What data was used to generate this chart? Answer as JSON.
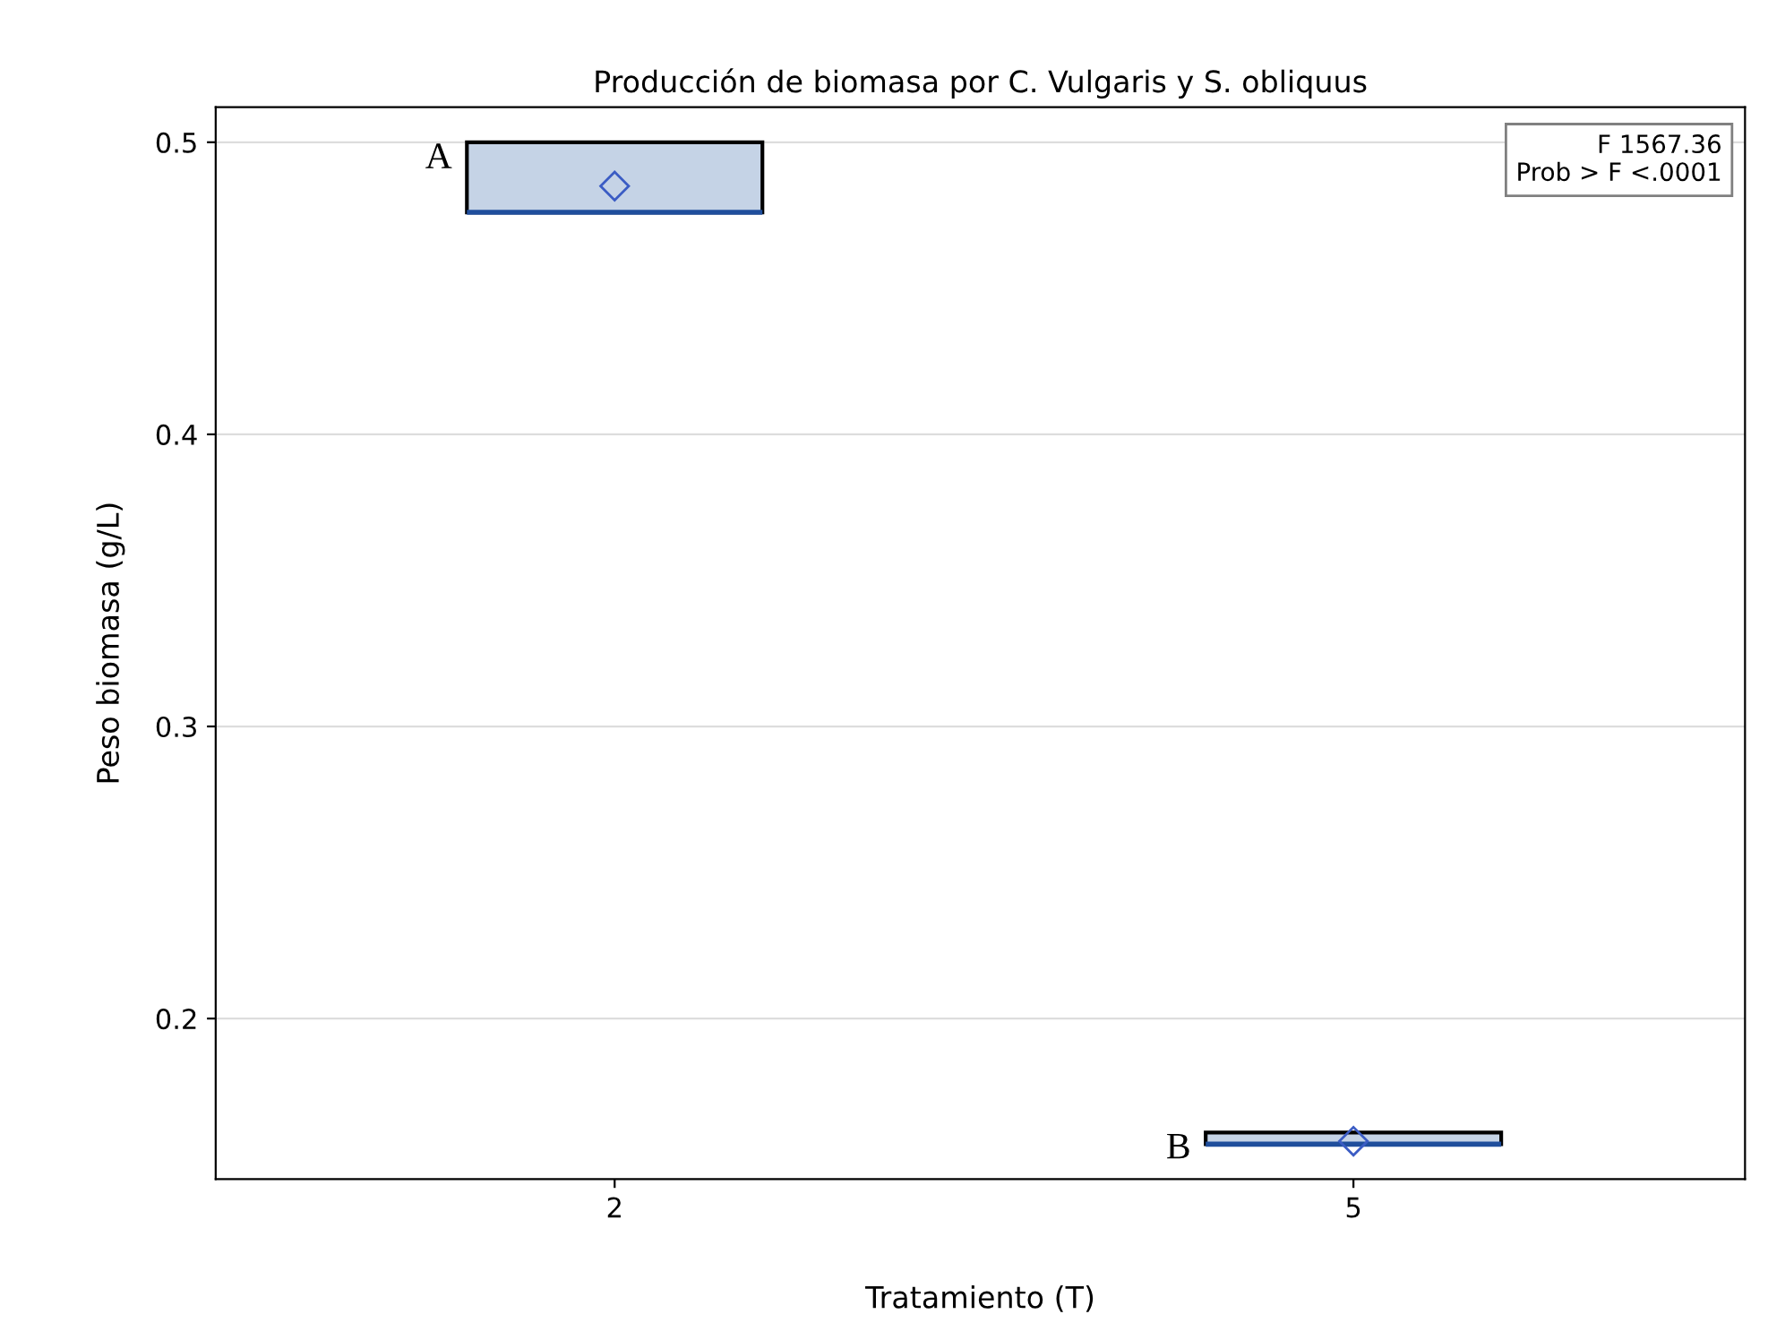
{
  "chart_data": {
    "type": "box",
    "title": "Producción de biomasa por C. Vulgaris y S. obliquus",
    "xlabel": "Tratamiento (T)",
    "ylabel": "Peso biomasa (g/L)",
    "categories": [
      "2",
      "5"
    ],
    "boxes": [
      {
        "low": 0.476,
        "q1": 0.476,
        "median": 0.476,
        "q3": 0.5,
        "high": 0.5,
        "mean": 0.485
      },
      {
        "low": 0.157,
        "q1": 0.157,
        "median": 0.157,
        "q3": 0.161,
        "high": 0.161,
        "mean": 0.158
      }
    ],
    "color": "#c5d3e6",
    "ylim": [
      0.145,
      0.512
    ],
    "yticks": [
      0.2,
      0.3,
      0.4,
      0.5
    ],
    "grid": "y",
    "marker": "diamond",
    "annotations": [
      "A",
      "B",
      "F 1567.36",
      "Prob > F <.0001"
    ]
  }
}
